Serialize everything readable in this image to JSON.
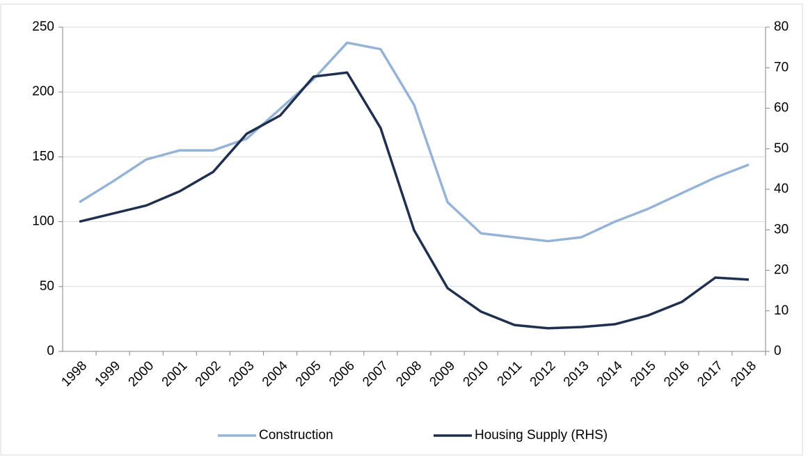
{
  "chart_data": {
    "type": "line",
    "categories": [
      "1998",
      "1999",
      "2000",
      "2001",
      "2002",
      "2003",
      "2004",
      "2005",
      "2006",
      "2007",
      "2008",
      "2009",
      "2010",
      "2011",
      "2012",
      "2013",
      "2014",
      "2015",
      "2016",
      "2017",
      "2018"
    ],
    "series": [
      {
        "name": "Construction",
        "color": "#95b3d7",
        "values": [
          115,
          131,
          148,
          155,
          155,
          164,
          187,
          210,
          238,
          233,
          190,
          115,
          91,
          88,
          85,
          88,
          100,
          110,
          122,
          134,
          144
        ]
      },
      {
        "name": "Housing Supply (RHS)",
        "color": "#1f2f4f",
        "axis": "y2",
        "values": [
          32,
          34,
          36,
          39.5,
          44.3,
          53.7,
          58.2,
          67.8,
          68.8,
          55.1,
          29.9,
          15.6,
          9.8,
          6.5,
          5.7,
          6,
          6.7,
          8.9,
          12.2,
          18.2,
          17.7
        ]
      }
    ],
    "ylim": [
      0,
      250
    ],
    "yticks": [
      0,
      50,
      100,
      150,
      200,
      250
    ],
    "y2lim": [
      0,
      80
    ],
    "y2ticks": [
      0,
      10,
      20,
      30,
      40,
      50,
      60,
      70,
      80
    ],
    "grid": true,
    "legend": "bottom"
  }
}
